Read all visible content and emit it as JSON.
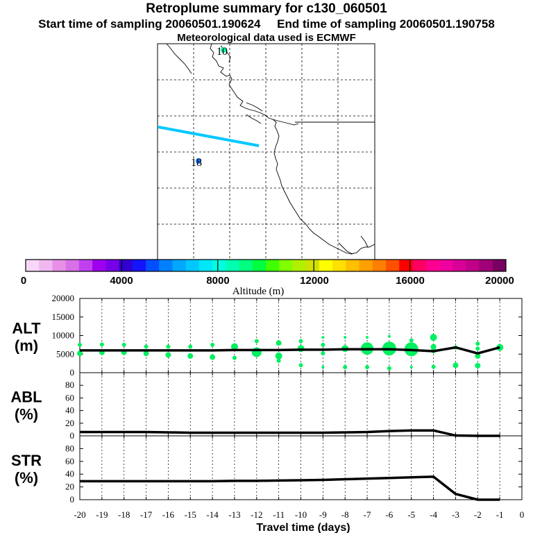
{
  "title": "Retroplume summary for c130_060501",
  "subtitle_start": "Start time of sampling 20060501.190624",
  "subtitle_end": "End time of sampling 20060501.190758",
  "met_line": "Meteorological data used is ECMWF",
  "map": {
    "markers": [
      {
        "label": "10",
        "color": "#00ffaa"
      },
      {
        "label": "18",
        "color": "#1478ff"
      }
    ],
    "flight_track_color": "#00c8ff"
  },
  "colorbar": {
    "label": "Altitude (m)",
    "ticks": [
      "0",
      "4000",
      "8000",
      "12000",
      "16000",
      "20000"
    ],
    "colors": [
      "#f8d8f8",
      "#f0b8f0",
      "#e890e8",
      "#d870e8",
      "#c040f0",
      "#a000f0",
      "#7800e8",
      "#3000d0",
      "#1414ff",
      "#0050ff",
      "#0080ff",
      "#00a8ff",
      "#00c8ff",
      "#00e8f8",
      "#00ffe0",
      "#00ffb0",
      "#00ff80",
      "#00ff40",
      "#40ff00",
      "#80ff00",
      "#b0f000",
      "#d0e000",
      "#ffff00",
      "#ffe000",
      "#ffc000",
      "#ffa000",
      "#ff8000",
      "#ff5000",
      "#ff0000",
      "#ff0060",
      "#ff0090",
      "#f000a0",
      "#d80098",
      "#c00088",
      "#a00078",
      "#780060"
    ]
  },
  "chart_data": [
    {
      "type": "line",
      "name": "ALT",
      "ylabel": "ALT (m)",
      "ylabel_top": "ALT",
      "ylabel_bottom": "(m)",
      "ylim": [
        0,
        20000
      ],
      "yticks": [
        "0",
        "5000",
        "10000",
        "15000",
        "20000"
      ],
      "x": [
        -20,
        -19,
        -18,
        -17,
        -16,
        -15,
        -14,
        -13,
        -12,
        -11,
        -10,
        -9,
        -8,
        -7,
        -6,
        -5,
        -4,
        -3,
        -2,
        -1
      ],
      "values": [
        6000,
        6000,
        6000,
        6000,
        6000,
        6000,
        6000,
        6100,
        6100,
        6100,
        6200,
        6200,
        6300,
        6300,
        6300,
        6100,
        5800,
        6800,
        5200,
        6800
      ],
      "plume_color": "#00f060",
      "plume_points": [
        {
          "x": -20,
          "y": 7500,
          "r": 3
        },
        {
          "x": -20,
          "y": 5200,
          "r": 4
        },
        {
          "x": -19,
          "y": 7600,
          "r": 3
        },
        {
          "x": -19,
          "y": 5500,
          "r": 4
        },
        {
          "x": -18,
          "y": 7500,
          "r": 3
        },
        {
          "x": -18,
          "y": 5500,
          "r": 4
        },
        {
          "x": -17,
          "y": 7000,
          "r": 3
        },
        {
          "x": -17,
          "y": 5200,
          "r": 4
        },
        {
          "x": -16,
          "y": 7000,
          "r": 3
        },
        {
          "x": -16,
          "y": 4800,
          "r": 4
        },
        {
          "x": -15,
          "y": 7000,
          "r": 3
        },
        {
          "x": -15,
          "y": 4500,
          "r": 4
        },
        {
          "x": -14,
          "y": 7500,
          "r": 3
        },
        {
          "x": -14,
          "y": 4200,
          "r": 4
        },
        {
          "x": -13,
          "y": 7000,
          "r": 5
        },
        {
          "x": -13,
          "y": 4000,
          "r": 3
        },
        {
          "x": -12,
          "y": 8500,
          "r": 3
        },
        {
          "x": -12,
          "y": 5500,
          "r": 7
        },
        {
          "x": -11,
          "y": 8000,
          "r": 4
        },
        {
          "x": -11,
          "y": 4500,
          "r": 5
        },
        {
          "x": -11,
          "y": 3200,
          "r": 3
        },
        {
          "x": -10,
          "y": 8500,
          "r": 3
        },
        {
          "x": -10,
          "y": 6500,
          "r": 5
        },
        {
          "x": -10,
          "y": 2000,
          "r": 3
        },
        {
          "x": -9,
          "y": 9500,
          "r": 2
        },
        {
          "x": -9,
          "y": 7500,
          "r": 3
        },
        {
          "x": -9,
          "y": 5200,
          "r": 3
        },
        {
          "x": -9,
          "y": 1500,
          "r": 2
        },
        {
          "x": -8,
          "y": 9500,
          "r": 2
        },
        {
          "x": -8,
          "y": 6500,
          "r": 5
        },
        {
          "x": -8,
          "y": 1500,
          "r": 3
        },
        {
          "x": -7,
          "y": 9500,
          "r": 2
        },
        {
          "x": -7,
          "y": 6500,
          "r": 9
        },
        {
          "x": -7,
          "y": 1500,
          "r": 3
        },
        {
          "x": -6,
          "y": 9800,
          "r": 2
        },
        {
          "x": -6,
          "y": 6500,
          "r": 10
        },
        {
          "x": -6,
          "y": 1200,
          "r": 3
        },
        {
          "x": -5,
          "y": 8700,
          "r": 3
        },
        {
          "x": -5,
          "y": 6300,
          "r": 10
        },
        {
          "x": -5,
          "y": 1500,
          "r": 2
        },
        {
          "x": -4,
          "y": 9500,
          "r": 5
        },
        {
          "x": -4,
          "y": 7000,
          "r": 4
        },
        {
          "x": -4,
          "y": 6000,
          "r": 4
        },
        {
          "x": -4,
          "y": 1600,
          "r": 3
        },
        {
          "x": -3,
          "y": 6800,
          "r": 3
        },
        {
          "x": -3,
          "y": 2000,
          "r": 4
        },
        {
          "x": -2,
          "y": 7800,
          "r": 3
        },
        {
          "x": -2,
          "y": 6500,
          "r": 3
        },
        {
          "x": -2,
          "y": 4500,
          "r": 4
        },
        {
          "x": -2,
          "y": 1900,
          "r": 4
        },
        {
          "x": -1,
          "y": 6800,
          "r": 5
        }
      ]
    },
    {
      "type": "line",
      "name": "ABL",
      "ylabel": "ABL (%)",
      "ylabel_top": "ABL",
      "ylabel_bottom": "(%)",
      "ylim": [
        0,
        100
      ],
      "yticks": [
        "0",
        "20",
        "40",
        "60",
        "80"
      ],
      "x": [
        -20,
        -19,
        -18,
        -17,
        -16,
        -15,
        -14,
        -13,
        -12,
        -11,
        -10,
        -9,
        -8,
        -7,
        -6,
        -5,
        -4,
        -3,
        -2,
        -1
      ],
      "values": [
        6,
        6,
        6,
        6,
        5.5,
        5,
        5,
        5,
        5,
        5,
        5,
        5,
        5.5,
        6,
        7.5,
        8.5,
        8.5,
        0.5,
        0,
        0
      ]
    },
    {
      "type": "line",
      "name": "STR",
      "ylabel": "STR (%)",
      "ylabel_top": "STR",
      "ylabel_bottom": "(%)",
      "ylim": [
        0,
        100
      ],
      "yticks": [
        "0",
        "20",
        "40",
        "60",
        "80"
      ],
      "x": [
        -20,
        -19,
        -18,
        -17,
        -16,
        -15,
        -14,
        -13,
        -12,
        -11,
        -10,
        -9,
        -8,
        -7,
        -6,
        -5,
        -4,
        -3,
        -2,
        -1
      ],
      "values": [
        29,
        29,
        29,
        29,
        29,
        29,
        29,
        29.5,
        29.5,
        30,
        30.5,
        31,
        32,
        33,
        34,
        35,
        36,
        9,
        0,
        0
      ]
    }
  ],
  "xaxis": {
    "label": "Travel time (days)",
    "ticks": [
      "-20",
      "-19",
      "-18",
      "-17",
      "-16",
      "-15",
      "-14",
      "-13",
      "-12",
      "-11",
      "-10",
      "-9",
      "-8",
      "-7",
      "-6",
      "-5",
      "-4",
      "-3",
      "-2",
      "-1",
      "0"
    ],
    "range": [
      -20,
      0
    ]
  }
}
